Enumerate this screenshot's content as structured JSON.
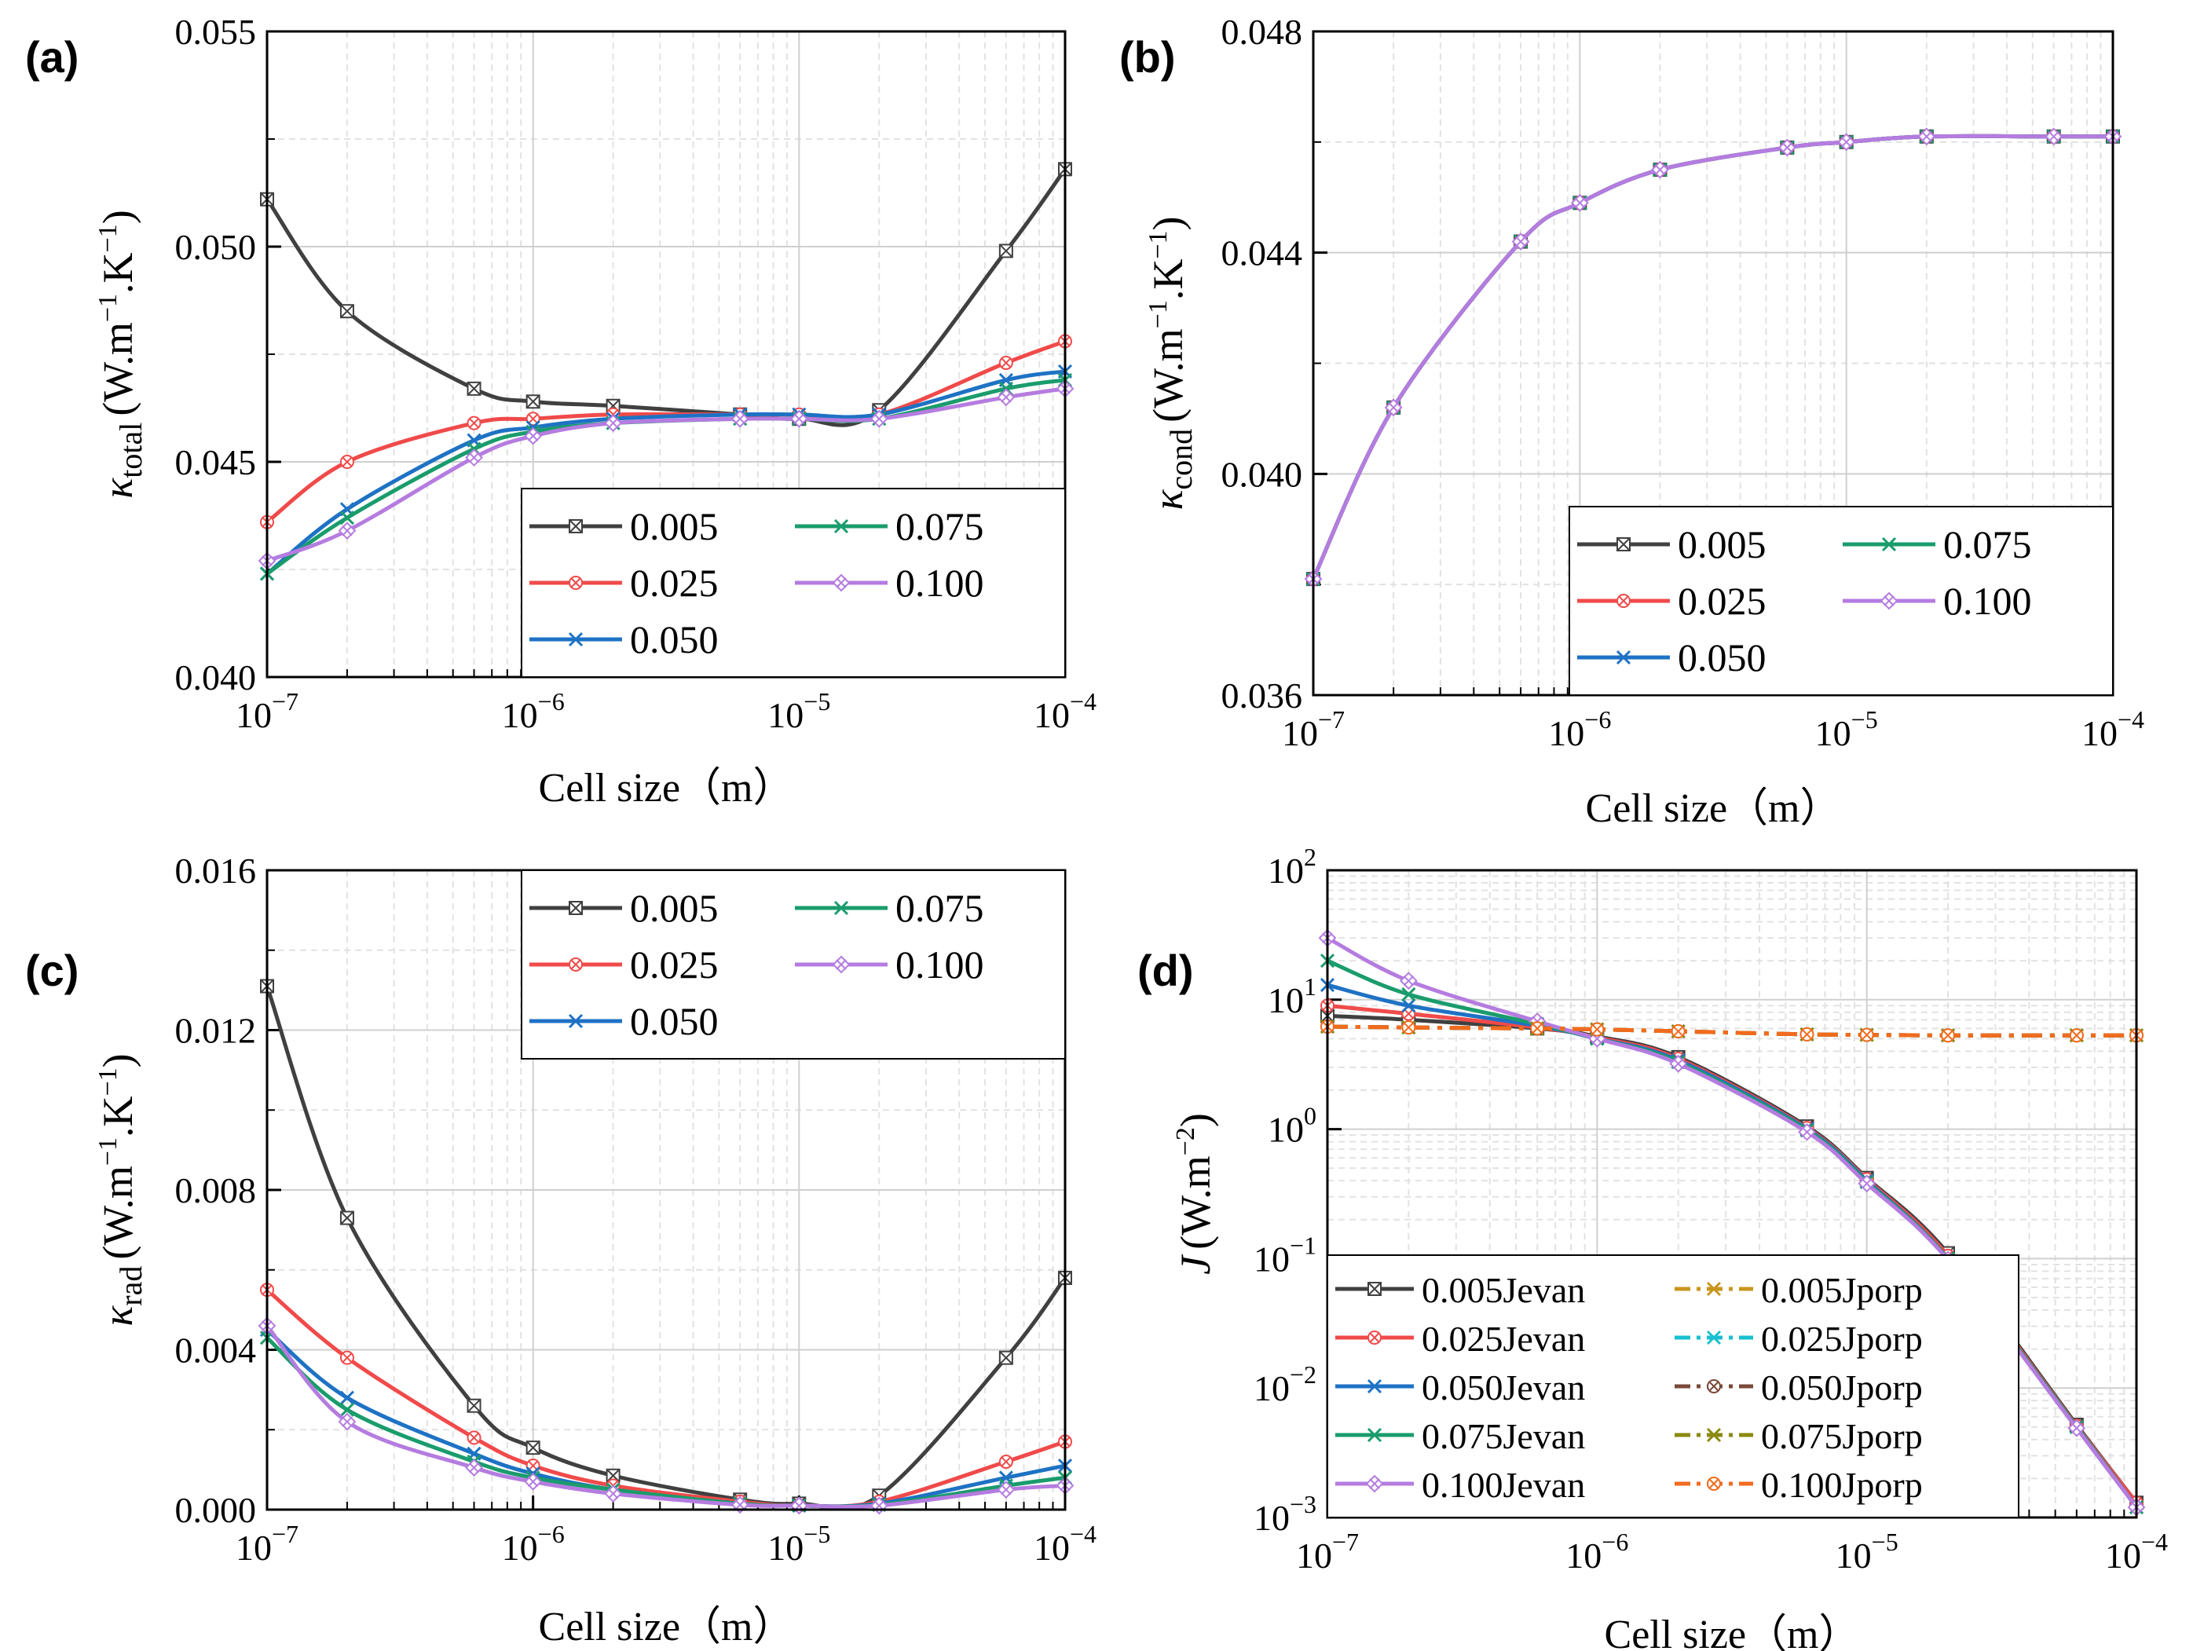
{
  "figure": {
    "xlabel_common": "Cell size（m）"
  },
  "chart_data": [
    {
      "id": "a",
      "panel_label": "(a)",
      "type": "line",
      "x_scale": "log",
      "xlim": [
        1e-07,
        0.0001
      ],
      "x_ticks": [
        "10^-7",
        "10^-6",
        "10^-5",
        "10^-4"
      ],
      "y_scale": "linear",
      "ylim": [
        0.04,
        0.055
      ],
      "y_ticks": [
        "0.040",
        "0.045",
        "0.050",
        "0.055"
      ],
      "ylabel_main": "κ",
      "ylabel_sub": "total",
      "ylabel_unit": "(W.m",
      "xlabel": "Cell size（m）",
      "legend": {
        "position": "bottom-right",
        "columns": 2
      },
      "x": [
        1e-07,
        2e-07,
        6e-07,
        1e-06,
        2e-06,
        6e-06,
        1e-05,
        2e-05,
        6e-05,
        0.0001
      ],
      "series": [
        {
          "name": "0.005",
          "color": "#404040",
          "marker": "boxx",
          "values": [
            0.0511,
            0.0485,
            0.0467,
            0.0464,
            0.0463,
            0.0461,
            0.046,
            0.0462,
            0.0499,
            0.0518
          ]
        },
        {
          "name": "0.025",
          "color": "#f04a4a",
          "marker": "circx",
          "values": [
            0.0436,
            0.045,
            0.0459,
            0.046,
            0.0461,
            0.0461,
            0.0461,
            0.0461,
            0.0473,
            0.0478
          ]
        },
        {
          "name": "0.050",
          "color": "#1e72c4",
          "marker": "x",
          "values": [
            0.0424,
            0.0439,
            0.0455,
            0.0458,
            0.046,
            0.0461,
            0.0461,
            0.0461,
            0.0469,
            0.0471
          ]
        },
        {
          "name": "0.075",
          "color": "#1a9c6c",
          "marker": "x",
          "values": [
            0.0424,
            0.0437,
            0.0453,
            0.0457,
            0.0459,
            0.046,
            0.046,
            0.046,
            0.0467,
            0.0469
          ]
        },
        {
          "name": "0.100",
          "color": "#b57ce0",
          "marker": "diamx",
          "values": [
            0.0427,
            0.0434,
            0.0451,
            0.0456,
            0.0459,
            0.046,
            0.046,
            0.046,
            0.0465,
            0.0467
          ]
        }
      ]
    },
    {
      "id": "b",
      "panel_label": "(b)",
      "type": "line",
      "x_scale": "log",
      "xlim": [
        1e-07,
        0.0001
      ],
      "x_ticks": [
        "10^-7",
        "10^-6",
        "10^-5",
        "10^-4"
      ],
      "y_scale": "linear",
      "ylim": [
        0.036,
        0.048
      ],
      "y_ticks": [
        "0.036",
        "0.040",
        "0.044",
        "0.048"
      ],
      "ylabel_main": "κ",
      "ylabel_sub": "cond",
      "ylabel_unit": "(W.m",
      "xlabel": "Cell size（m）",
      "legend": {
        "position": "bottom-right",
        "columns": 2
      },
      "x": [
        1e-07,
        2e-07,
        6e-07,
        1e-06,
        2e-06,
        6e-06,
        1e-05,
        2e-05,
        6e-05,
        0.0001
      ],
      "series": [
        {
          "name": "0.005",
          "color": "#404040",
          "marker": "boxx",
          "values": [
            0.0381,
            0.0412,
            0.0442,
            0.0449,
            0.0455,
            0.0459,
            0.046,
            0.0461,
            0.0461,
            0.0461
          ]
        },
        {
          "name": "0.025",
          "color": "#f04a4a",
          "marker": "circx",
          "values": [
            0.0381,
            0.0412,
            0.0442,
            0.0449,
            0.0455,
            0.0459,
            0.046,
            0.0461,
            0.0461,
            0.0461
          ]
        },
        {
          "name": "0.050",
          "color": "#1e72c4",
          "marker": "x",
          "values": [
            0.0381,
            0.0412,
            0.0442,
            0.0449,
            0.0455,
            0.0459,
            0.046,
            0.0461,
            0.0461,
            0.0461
          ]
        },
        {
          "name": "0.075",
          "color": "#1a9c6c",
          "marker": "x",
          "values": [
            0.0381,
            0.0412,
            0.0442,
            0.0449,
            0.0455,
            0.0459,
            0.046,
            0.0461,
            0.0461,
            0.0461
          ]
        },
        {
          "name": "0.100",
          "color": "#b57ce0",
          "marker": "diamx",
          "values": [
            0.0381,
            0.0412,
            0.0442,
            0.0449,
            0.0455,
            0.0459,
            0.046,
            0.0461,
            0.0461,
            0.0461
          ]
        }
      ]
    },
    {
      "id": "c",
      "panel_label": "(c)",
      "type": "line",
      "x_scale": "log",
      "xlim": [
        1e-07,
        0.0001
      ],
      "x_ticks": [
        "10^-7",
        "10^-6",
        "10^-5",
        "10^-4"
      ],
      "y_scale": "linear",
      "ylim": [
        0,
        0.016
      ],
      "y_ticks": [
        "0.000",
        "0.004",
        "0.008",
        "0.012",
        "0.016"
      ],
      "ylabel_main": "κ",
      "ylabel_sub": "rad",
      "ylabel_unit": "(W.m",
      "xlabel": "Cell size（m）",
      "legend": {
        "position": "top-right",
        "columns": 2
      },
      "x": [
        1e-07,
        2e-07,
        6e-07,
        1e-06,
        2e-06,
        6e-06,
        1e-05,
        2e-05,
        6e-05,
        0.0001
      ],
      "series": [
        {
          "name": "0.005",
          "color": "#404040",
          "marker": "boxx",
          "values": [
            0.0131,
            0.0073,
            0.0026,
            0.00155,
            0.00085,
            0.00025,
            0.00015,
            0.00035,
            0.0038,
            0.0058
          ]
        },
        {
          "name": "0.025",
          "color": "#f04a4a",
          "marker": "circx",
          "values": [
            0.0055,
            0.0038,
            0.0018,
            0.0011,
            0.0006,
            0.0002,
            0.0001,
            0.0002,
            0.0012,
            0.0017
          ]
        },
        {
          "name": "0.050",
          "color": "#1e72c4",
          "marker": "x",
          "values": [
            0.0045,
            0.0028,
            0.0014,
            0.0009,
            0.0005,
            0.00015,
            0.0001,
            0.00015,
            0.0008,
            0.0011
          ]
        },
        {
          "name": "0.075",
          "color": "#1a9c6c",
          "marker": "x",
          "values": [
            0.0043,
            0.0025,
            0.0012,
            0.0008,
            0.0005,
            0.00015,
            0.0001,
            0.00012,
            0.0006,
            0.0008
          ]
        },
        {
          "name": "0.100",
          "color": "#b57ce0",
          "marker": "diamx",
          "values": [
            0.0046,
            0.0022,
            0.00105,
            0.0007,
            0.0004,
            0.00012,
            0.0001,
            0.0001,
            0.0005,
            0.0006
          ]
        }
      ]
    },
    {
      "id": "d",
      "panel_label": "(d)",
      "type": "line",
      "x_scale": "log",
      "xlim": [
        1e-07,
        0.0001
      ],
      "x_ticks": [
        "10^-7",
        "10^-6",
        "10^-5",
        "10^-4"
      ],
      "y_scale": "log",
      "ylim": [
        0.001,
        100
      ],
      "y_ticks": [
        "10^-3",
        "10^-2",
        "10^-1",
        "10^0",
        "10^1",
        "10^2"
      ],
      "ylabel_main": "J",
      "ylabel_sub": "",
      "ylabel_unit": "(W.m",
      "xlabel": "Cell size（m）",
      "legend": {
        "position": "bottom-left",
        "columns": 2
      },
      "x": [
        1e-07,
        2e-07,
        6e-07,
        1e-06,
        2e-06,
        6e-06,
        1e-05,
        2e-05,
        6e-05,
        0.0001
      ],
      "series": [
        {
          "name": "0.005Jevan",
          "color": "#404040",
          "dash": "solid",
          "marker": "boxx",
          "values": [
            7.5,
            7.0,
            6.0,
            5.2,
            3.6,
            1.05,
            0.42,
            0.11,
            0.0052,
            0.0013
          ]
        },
        {
          "name": "0.025Jevan",
          "color": "#f04a4a",
          "dash": "solid",
          "marker": "circx",
          "values": [
            9.0,
            7.8,
            6.1,
            5.1,
            3.5,
            1.02,
            0.41,
            0.105,
            0.0051,
            0.0013
          ]
        },
        {
          "name": "0.050Jevan",
          "color": "#1e72c4",
          "dash": "solid",
          "marker": "x",
          "values": [
            13.0,
            9.0,
            6.3,
            5.0,
            3.4,
            1.0,
            0.4,
            0.1,
            0.005,
            0.0012
          ]
        },
        {
          "name": "0.075Jevan",
          "color": "#1a9c6c",
          "dash": "solid",
          "marker": "x",
          "values": [
            20.0,
            11.0,
            6.5,
            5.0,
            3.3,
            0.98,
            0.39,
            0.1,
            0.005,
            0.0012
          ]
        },
        {
          "name": "0.100Jevan",
          "color": "#b57ce0",
          "dash": "solid",
          "marker": "diamx",
          "values": [
            30.0,
            14.0,
            6.8,
            5.0,
            3.2,
            0.95,
            0.38,
            0.098,
            0.0049,
            0.0012
          ]
        },
        {
          "name": "0.005Jporp",
          "color": "#c8961e",
          "dash": "dashdot",
          "marker": "x",
          "values": [
            6.2,
            6.1,
            6.0,
            5.9,
            5.7,
            5.4,
            5.35,
            5.3,
            5.3,
            5.3
          ]
        },
        {
          "name": "0.025Jporp",
          "color": "#18c0d0",
          "dash": "dashdot",
          "marker": "x",
          "values": [
            6.2,
            6.1,
            6.0,
            5.9,
            5.7,
            5.4,
            5.35,
            5.3,
            5.3,
            5.3
          ]
        },
        {
          "name": "0.050Jporp",
          "color": "#7a4a3a",
          "dash": "dashdot",
          "marker": "circx",
          "values": [
            6.2,
            6.1,
            6.0,
            5.9,
            5.7,
            5.4,
            5.35,
            5.3,
            5.3,
            5.3
          ]
        },
        {
          "name": "0.075Jporp",
          "color": "#8a8a10",
          "dash": "dashdot",
          "marker": "x",
          "values": [
            6.2,
            6.1,
            6.0,
            5.9,
            5.7,
            5.4,
            5.35,
            5.3,
            5.3,
            5.3
          ]
        },
        {
          "name": "0.100Jporp",
          "color": "#f26b1d",
          "dash": "dashdot",
          "marker": "circx",
          "values": [
            6.2,
            6.1,
            6.0,
            5.9,
            5.7,
            5.4,
            5.35,
            5.3,
            5.3,
            5.3
          ]
        }
      ]
    }
  ]
}
